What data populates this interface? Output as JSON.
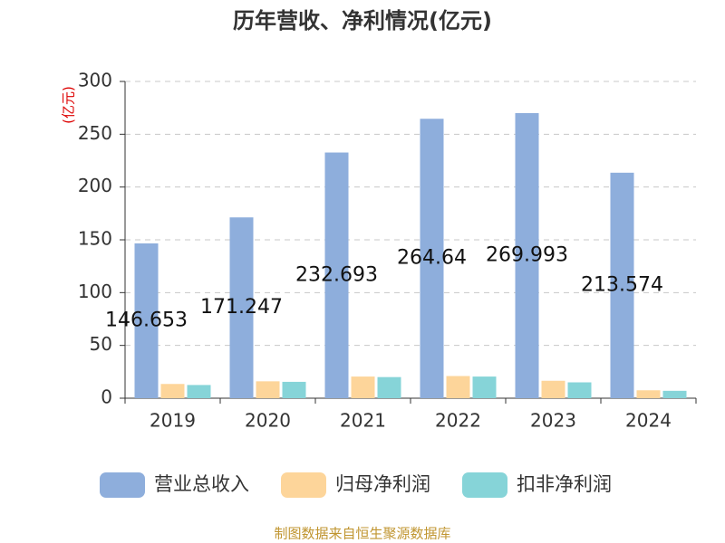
{
  "chart_data": {
    "type": "bar",
    "title": "历年营收、净利情况(亿元)",
    "y_label": "(亿元)",
    "categories": [
      "2019",
      "2020",
      "2021",
      "2022",
      "2023",
      "2024"
    ],
    "series": [
      {
        "name": "营业总收入",
        "color": "#8eaedc",
        "values": [
          146.653,
          171.247,
          232.693,
          264.64,
          269.993,
          213.574
        ],
        "show_labels": true
      },
      {
        "name": "归母净利润",
        "color": "#fdd59a",
        "values": [
          13.5,
          16,
          20.5,
          21,
          16.5,
          7.5
        ]
      },
      {
        "name": "扣非净利润",
        "color": "#86d4d8",
        "values": [
          12.5,
          15.5,
          20,
          20.5,
          15,
          7
        ]
      }
    ],
    "ylim": [
      0,
      300
    ],
    "yticks": [
      0,
      50,
      100,
      150,
      200,
      250,
      300
    ],
    "grid": true,
    "source": "制图数据来自恒生聚源数据库"
  }
}
